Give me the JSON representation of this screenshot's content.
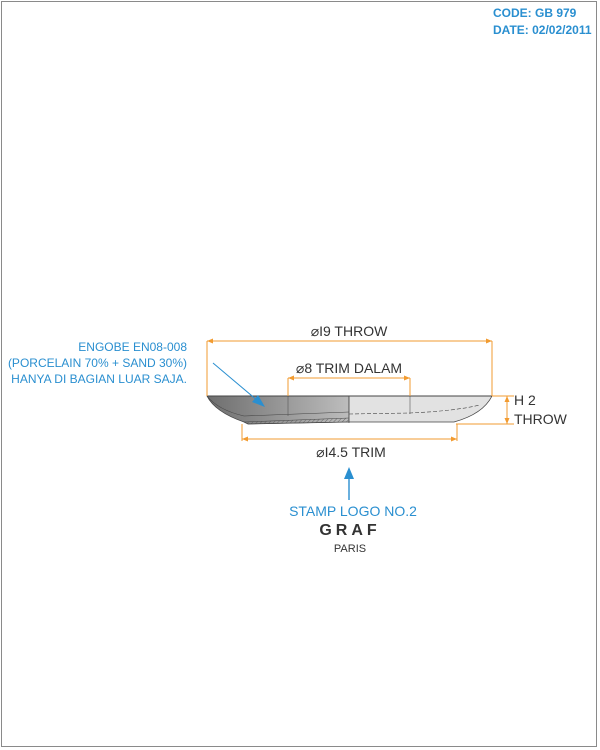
{
  "header": {
    "code": "CODE: GB 979",
    "date": "DATE: 02/02/2011"
  },
  "colors": {
    "annotation": "#2a8fd0",
    "dimension_line": "#f29b30",
    "text": "#333333"
  },
  "dimensions": {
    "throw_diameter": "⌀I9 THROW",
    "trim_dalam": "⌀8 TRIM DALAM",
    "height_value": "H 2",
    "height_label": "THROW",
    "trim_diameter": "⌀I4.5 TRIM"
  },
  "note": {
    "line1": "ENGOBE EN08-008",
    "line2": "(PORCELAIN 70% + SAND 30%)",
    "line3": "HANYA DI BAGIAN LUAR SAJA."
  },
  "stamp": {
    "label": "STAMP LOGO NO.2",
    "brand": "GRAF",
    "city": "PARIS"
  }
}
